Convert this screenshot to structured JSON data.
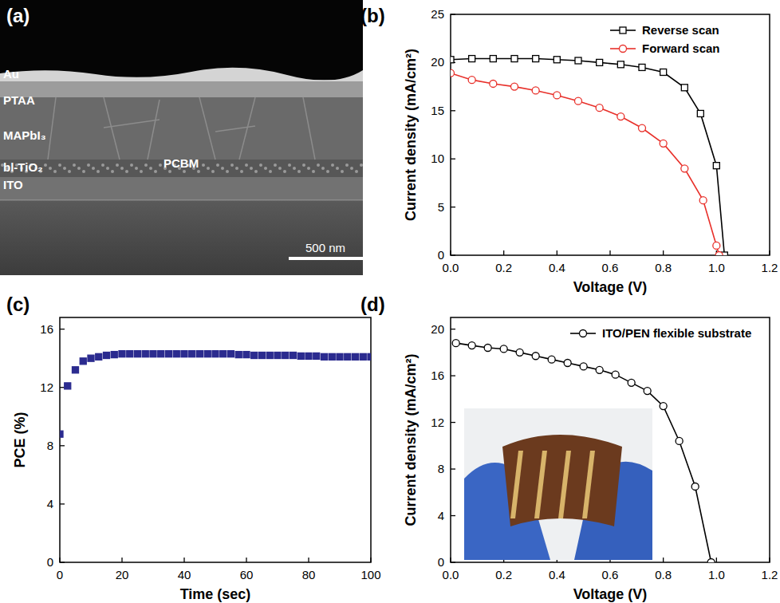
{
  "chart_data": [
    {
      "type": "image",
      "panel_label": "(a)",
      "labels": [
        "Au",
        "PTAA",
        "MAPbI₃",
        "bl-TiO₂",
        "ITO",
        "PCBM"
      ],
      "scale_bar": "500 nm"
    },
    {
      "type": "line",
      "panel_label": "(b)",
      "x_label": "Voltage (V)",
      "y_label": "Current density (mA/cm²)",
      "xlim": [
        0,
        1.2
      ],
      "ylim": [
        0,
        25
      ],
      "xticks": [
        {
          "value": 0,
          "label": "0.0"
        },
        {
          "value": 0.2,
          "label": "0.2"
        },
        {
          "value": 0.4,
          "label": "0.4"
        },
        {
          "value": 0.6,
          "label": "0.6"
        },
        {
          "value": 0.8,
          "label": "0.8"
        },
        {
          "value": 1.0,
          "label": "1.0"
        },
        {
          "value": 1.2,
          "label": "1.2"
        }
      ],
      "yticks": [
        0,
        5,
        10,
        15,
        20,
        25
      ],
      "legend": "upper right",
      "series": [
        {
          "name": "Reverse scan",
          "color": "#000000",
          "marker": "open-square",
          "line_style": "solid",
          "x": [
            0,
            0.08,
            0.16,
            0.24,
            0.32,
            0.4,
            0.48,
            0.56,
            0.64,
            0.72,
            0.8,
            0.88,
            0.94,
            1.0,
            1.03
          ],
          "values": [
            20.3,
            20.4,
            20.4,
            20.4,
            20.4,
            20.3,
            20.2,
            20.0,
            19.8,
            19.5,
            19.0,
            17.4,
            14.7,
            9.3,
            0
          ]
        },
        {
          "name": "Forward scan",
          "color": "#e8302a",
          "marker": "open-circle",
          "line_style": "solid",
          "x": [
            0,
            0.08,
            0.16,
            0.24,
            0.32,
            0.4,
            0.48,
            0.56,
            0.64,
            0.72,
            0.8,
            0.88,
            0.95,
            1.0,
            1.01
          ],
          "values": [
            18.9,
            18.2,
            17.8,
            17.5,
            17.1,
            16.6,
            16.0,
            15.3,
            14.4,
            13.2,
            11.6,
            9.0,
            5.7,
            1.0,
            0
          ]
        }
      ]
    },
    {
      "type": "scatter",
      "panel_label": "(c)",
      "x_label": "Time (sec)",
      "y_label": "PCE (%)",
      "xlim": [
        0,
        100
      ],
      "ylim": [
        0,
        16.8
      ],
      "xticks": [
        0,
        20,
        40,
        60,
        80,
        100
      ],
      "yticks": [
        0,
        4,
        8,
        12,
        16
      ],
      "color": "#2b2b8f",
      "marker": "square",
      "line_style": "none",
      "x": [
        0,
        2.5,
        5,
        7.5,
        10,
        12.5,
        15,
        17.5,
        20,
        22.5,
        25,
        27.5,
        30,
        32.5,
        35,
        37.5,
        40,
        42.5,
        45,
        47.5,
        50,
        52.5,
        55,
        57.5,
        60,
        62.5,
        65,
        67.5,
        70,
        72.5,
        75,
        77.5,
        80,
        82.5,
        85,
        87.5,
        90,
        92.5,
        95,
        97.5,
        100
      ],
      "values": [
        8.8,
        12.1,
        13.2,
        13.8,
        14.0,
        14.1,
        14.2,
        14.25,
        14.3,
        14.3,
        14.3,
        14.3,
        14.3,
        14.3,
        14.3,
        14.3,
        14.3,
        14.3,
        14.3,
        14.3,
        14.3,
        14.3,
        14.3,
        14.25,
        14.25,
        14.2,
        14.2,
        14.2,
        14.2,
        14.2,
        14.2,
        14.15,
        14.15,
        14.15,
        14.1,
        14.1,
        14.1,
        14.1,
        14.1,
        14.1,
        14.1
      ]
    },
    {
      "type": "line",
      "panel_label": "(d)",
      "x_label": "Voltage (V)",
      "y_label": "Current density (mA/cm²)",
      "xlim": [
        0,
        1.2
      ],
      "ylim": [
        0,
        21
      ],
      "xticks": [
        {
          "value": 0,
          "label": "0.0"
        },
        {
          "value": 0.2,
          "label": "0.2"
        },
        {
          "value": 0.4,
          "label": "0.4"
        },
        {
          "value": 0.6,
          "label": "0.6"
        },
        {
          "value": 0.8,
          "label": "0.8"
        },
        {
          "value": 1.0,
          "label": "1.0"
        },
        {
          "value": 1.2,
          "label": "1.2"
        }
      ],
      "yticks": [
        0,
        4,
        8,
        12,
        16,
        20
      ],
      "legend": "upper right",
      "series": [
        {
          "name": "ITO/PEN flexible substrate",
          "color": "#000000",
          "marker": "open-circle",
          "line_style": "solid",
          "x": [
            0.02,
            0.08,
            0.14,
            0.2,
            0.26,
            0.32,
            0.38,
            0.44,
            0.5,
            0.56,
            0.62,
            0.68,
            0.74,
            0.8,
            0.86,
            0.92,
            0.98
          ],
          "values": [
            18.8,
            18.6,
            18.4,
            18.3,
            18.0,
            17.7,
            17.4,
            17.1,
            16.8,
            16.5,
            16.1,
            15.4,
            14.7,
            13.4,
            10.4,
            6.5,
            0
          ]
        }
      ]
    }
  ]
}
